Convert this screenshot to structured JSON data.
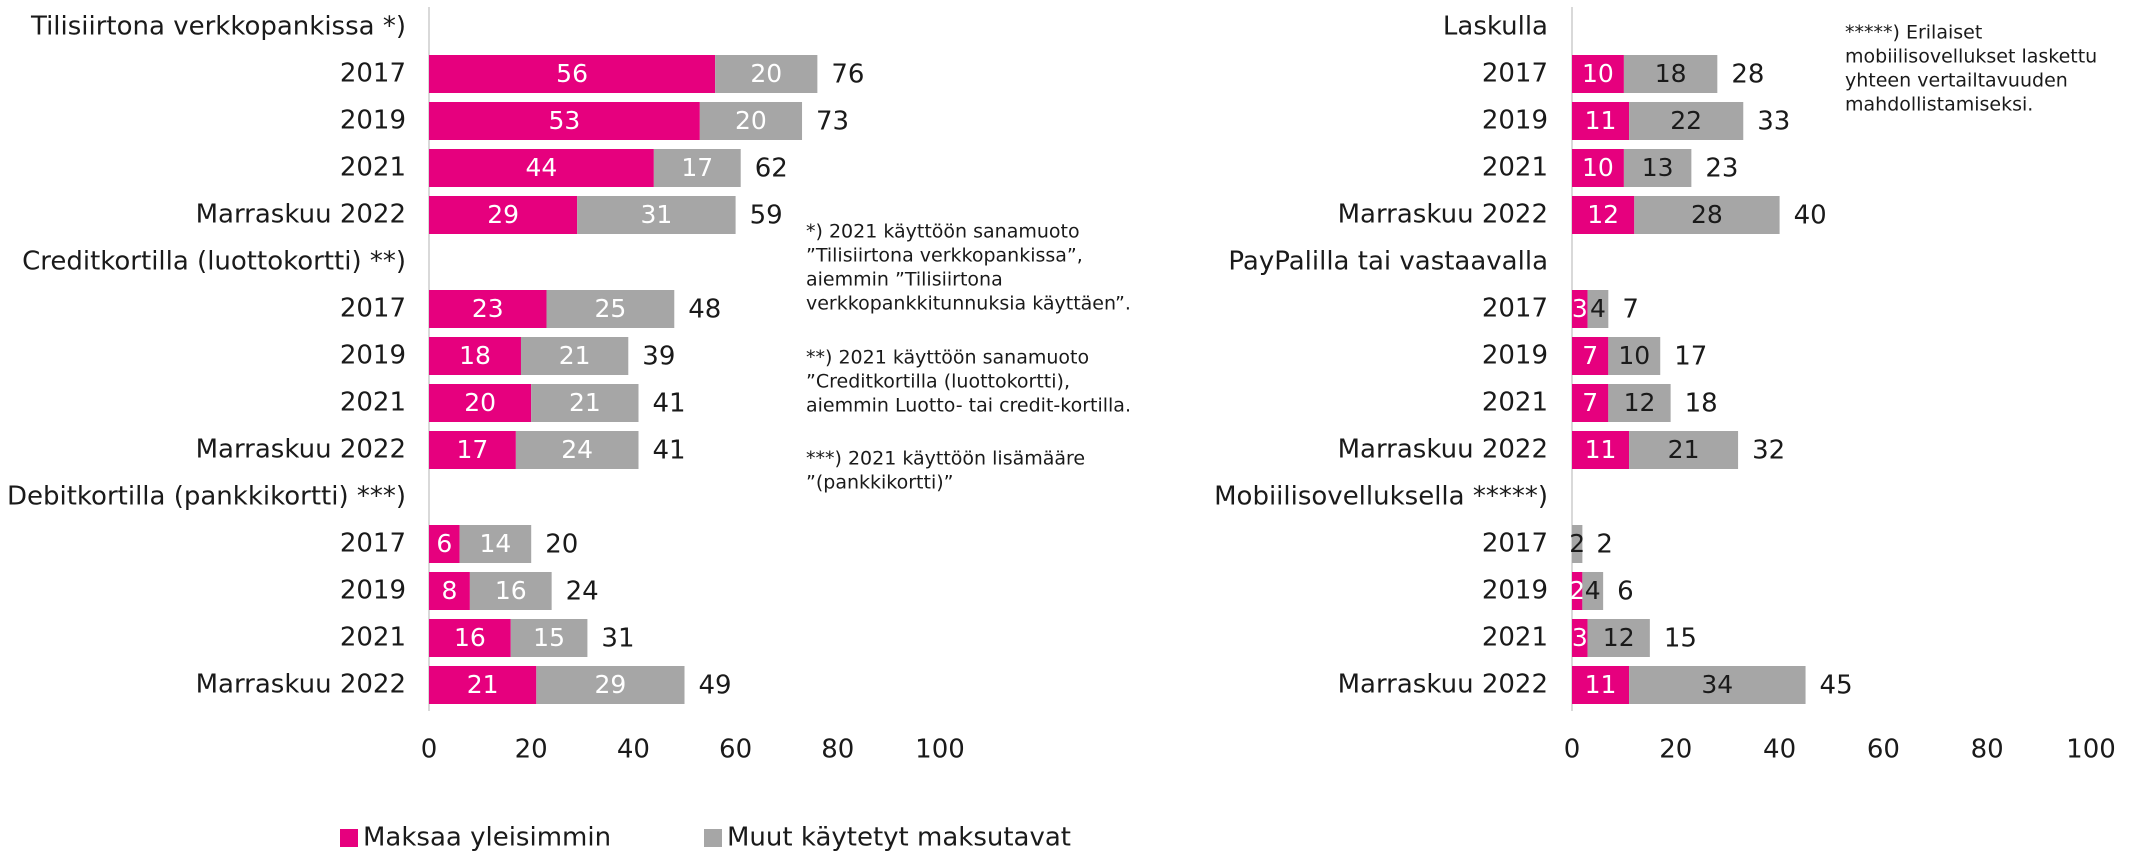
{
  "chart_data": [
    {
      "type": "bar",
      "orientation": "horizontal",
      "stacked": true,
      "categories": [
        "Tilisiirtona verkkopankissa *)",
        "2017",
        "2019",
        "2021",
        "Marraskuu 2022",
        "Creditkortilla (luottokortti) **)",
        "2017",
        "2019",
        "2021",
        "Marraskuu 2022",
        "Debitkortilla (pankkikortti) ***)",
        "2017",
        "2019",
        "2021",
        "Marraskuu 2022"
      ],
      "series": [
        {
          "name": "Maksaa yleisimmin",
          "color": "#e6007e",
          "label_color": "#ffffff",
          "values": [
            null,
            56,
            53,
            44,
            29,
            null,
            23,
            18,
            20,
            17,
            null,
            6,
            8,
            16,
            21
          ]
        },
        {
          "name": "Muut käytetyt maksutavat",
          "color": "#a6a6a6",
          "label_color": "#ffffff",
          "values": [
            null,
            20,
            20,
            17,
            31,
            null,
            25,
            21,
            21,
            24,
            null,
            14,
            16,
            15,
            29
          ]
        }
      ],
      "totals": [
        null,
        76,
        73,
        62,
        59,
        null,
        48,
        39,
        41,
        41,
        null,
        20,
        24,
        31,
        49
      ],
      "xlim": [
        0,
        100
      ],
      "xticks": [
        0,
        20,
        40,
        60,
        80,
        100
      ],
      "annotations": [
        [
          "*) 2021 käyttöön sanamuoto",
          "”Tilisiirtona verkkopankissa”,",
          "aiemmin ”Tilisiirtona",
          "verkkopankkitunnuksia käyttäen”."
        ],
        [
          "**) 2021 käyttöön sanamuoto",
          "”Creditkortilla (luottokortti),",
          "aiemmin Luotto- tai credit-kortilla."
        ],
        [
          "***) 2021 käyttöön lisämääre",
          "”(pankkikortti)”"
        ]
      ],
      "legend": "bottom"
    },
    {
      "type": "bar",
      "orientation": "horizontal",
      "stacked": true,
      "categories": [
        "Laskulla",
        "2017",
        "2019",
        "2021",
        "Marraskuu 2022",
        "PayPalilla tai vastaavalla",
        "2017",
        "2019",
        "2021",
        "Marraskuu 2022",
        "Mobiilisovelluksella *****)",
        "2017",
        "2019",
        "2021",
        "Marraskuu 2022"
      ],
      "series": [
        {
          "name": "Maksaa yleisimmin",
          "color": "#e6007e",
          "label_color": "#ffffff",
          "values": [
            null,
            10,
            11,
            10,
            12,
            null,
            3,
            7,
            7,
            11,
            null,
            null,
            2,
            3,
            11
          ]
        },
        {
          "name": "Muut käytetyt maksutavat",
          "color": "#a6a6a6",
          "label_color": "#1a1a1a",
          "values": [
            null,
            18,
            22,
            13,
            28,
            null,
            4,
            10,
            12,
            21,
            null,
            2,
            4,
            12,
            34
          ]
        }
      ],
      "totals": [
        null,
        28,
        33,
        23,
        40,
        null,
        7,
        17,
        18,
        32,
        null,
        2,
        6,
        15,
        45
      ],
      "xlim": [
        0,
        100
      ],
      "xticks": [
        0,
        20,
        40,
        60,
        80,
        100
      ],
      "annotations": [
        [
          "*****) Erilaiset",
          "mobiilisovellukset laskettu",
          "yhteen vertailtavuuden",
          "mahdollistamiseksi."
        ]
      ]
    }
  ]
}
